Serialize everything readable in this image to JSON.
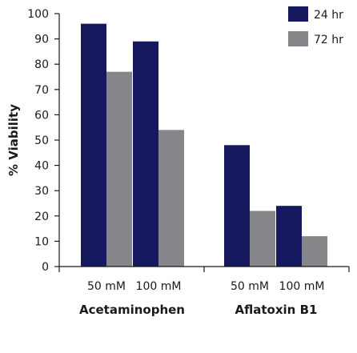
{
  "colors": {
    "series_24": "#17195f",
    "series_72": "#858689",
    "axis": "#1a1a1a"
  },
  "chart_data": {
    "type": "bar",
    "ylabel": "% Viability",
    "ylim": [
      0,
      100
    ],
    "yticks": [
      0,
      10,
      20,
      30,
      40,
      50,
      60,
      70,
      80,
      90,
      100
    ],
    "groups": [
      "Acetaminophen",
      "Aflatoxin B1"
    ],
    "categories": [
      "50 mM",
      "100 mM",
      "50 mM",
      "100 mM"
    ],
    "category_group": [
      0,
      0,
      1,
      1
    ],
    "series": [
      {
        "name": "24 hr",
        "values": [
          96,
          89,
          48,
          24
        ]
      },
      {
        "name": "72 hr",
        "values": [
          77,
          54,
          22,
          12
        ]
      }
    ],
    "legend": "top-right",
    "grid": false
  }
}
